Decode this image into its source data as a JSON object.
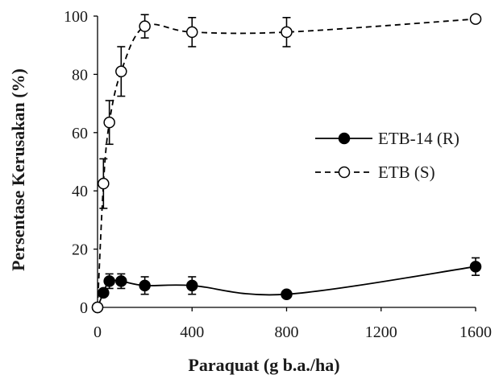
{
  "chart_data": {
    "type": "line",
    "title": "",
    "xlabel": "Paraquat (g b.a./ha)",
    "ylabel": "Persentase Kerusakan (%)",
    "xlim": [
      0,
      1600
    ],
    "ylim": [
      0,
      100
    ],
    "xticks": [
      0,
      400,
      800,
      1200,
      1600
    ],
    "yticks": [
      0,
      20,
      40,
      60,
      80,
      100
    ],
    "grid": false,
    "legend_position": "right-middle",
    "series": [
      {
        "name": "ETB-14 (R)",
        "marker": "filled-circle",
        "line_style": "solid",
        "color": "#000000",
        "x": [
          0,
          25,
          50,
          100,
          200,
          400,
          800,
          1600
        ],
        "y": [
          0,
          5,
          9,
          9,
          7.5,
          7.5,
          4.5,
          14
        ],
        "error": [
          0,
          1,
          2.5,
          2.5,
          3,
          3,
          1,
          3
        ]
      },
      {
        "name": "ETB (S)",
        "marker": "open-circle",
        "line_style": "dashed",
        "color": "#000000",
        "x": [
          0,
          25,
          50,
          100,
          200,
          400,
          800,
          1600
        ],
        "y": [
          0,
          42.5,
          63.5,
          81,
          96.5,
          94.5,
          94.5,
          99
        ],
        "error": [
          0,
          8.5,
          7.5,
          8.5,
          4,
          5,
          5,
          1
        ]
      }
    ]
  }
}
